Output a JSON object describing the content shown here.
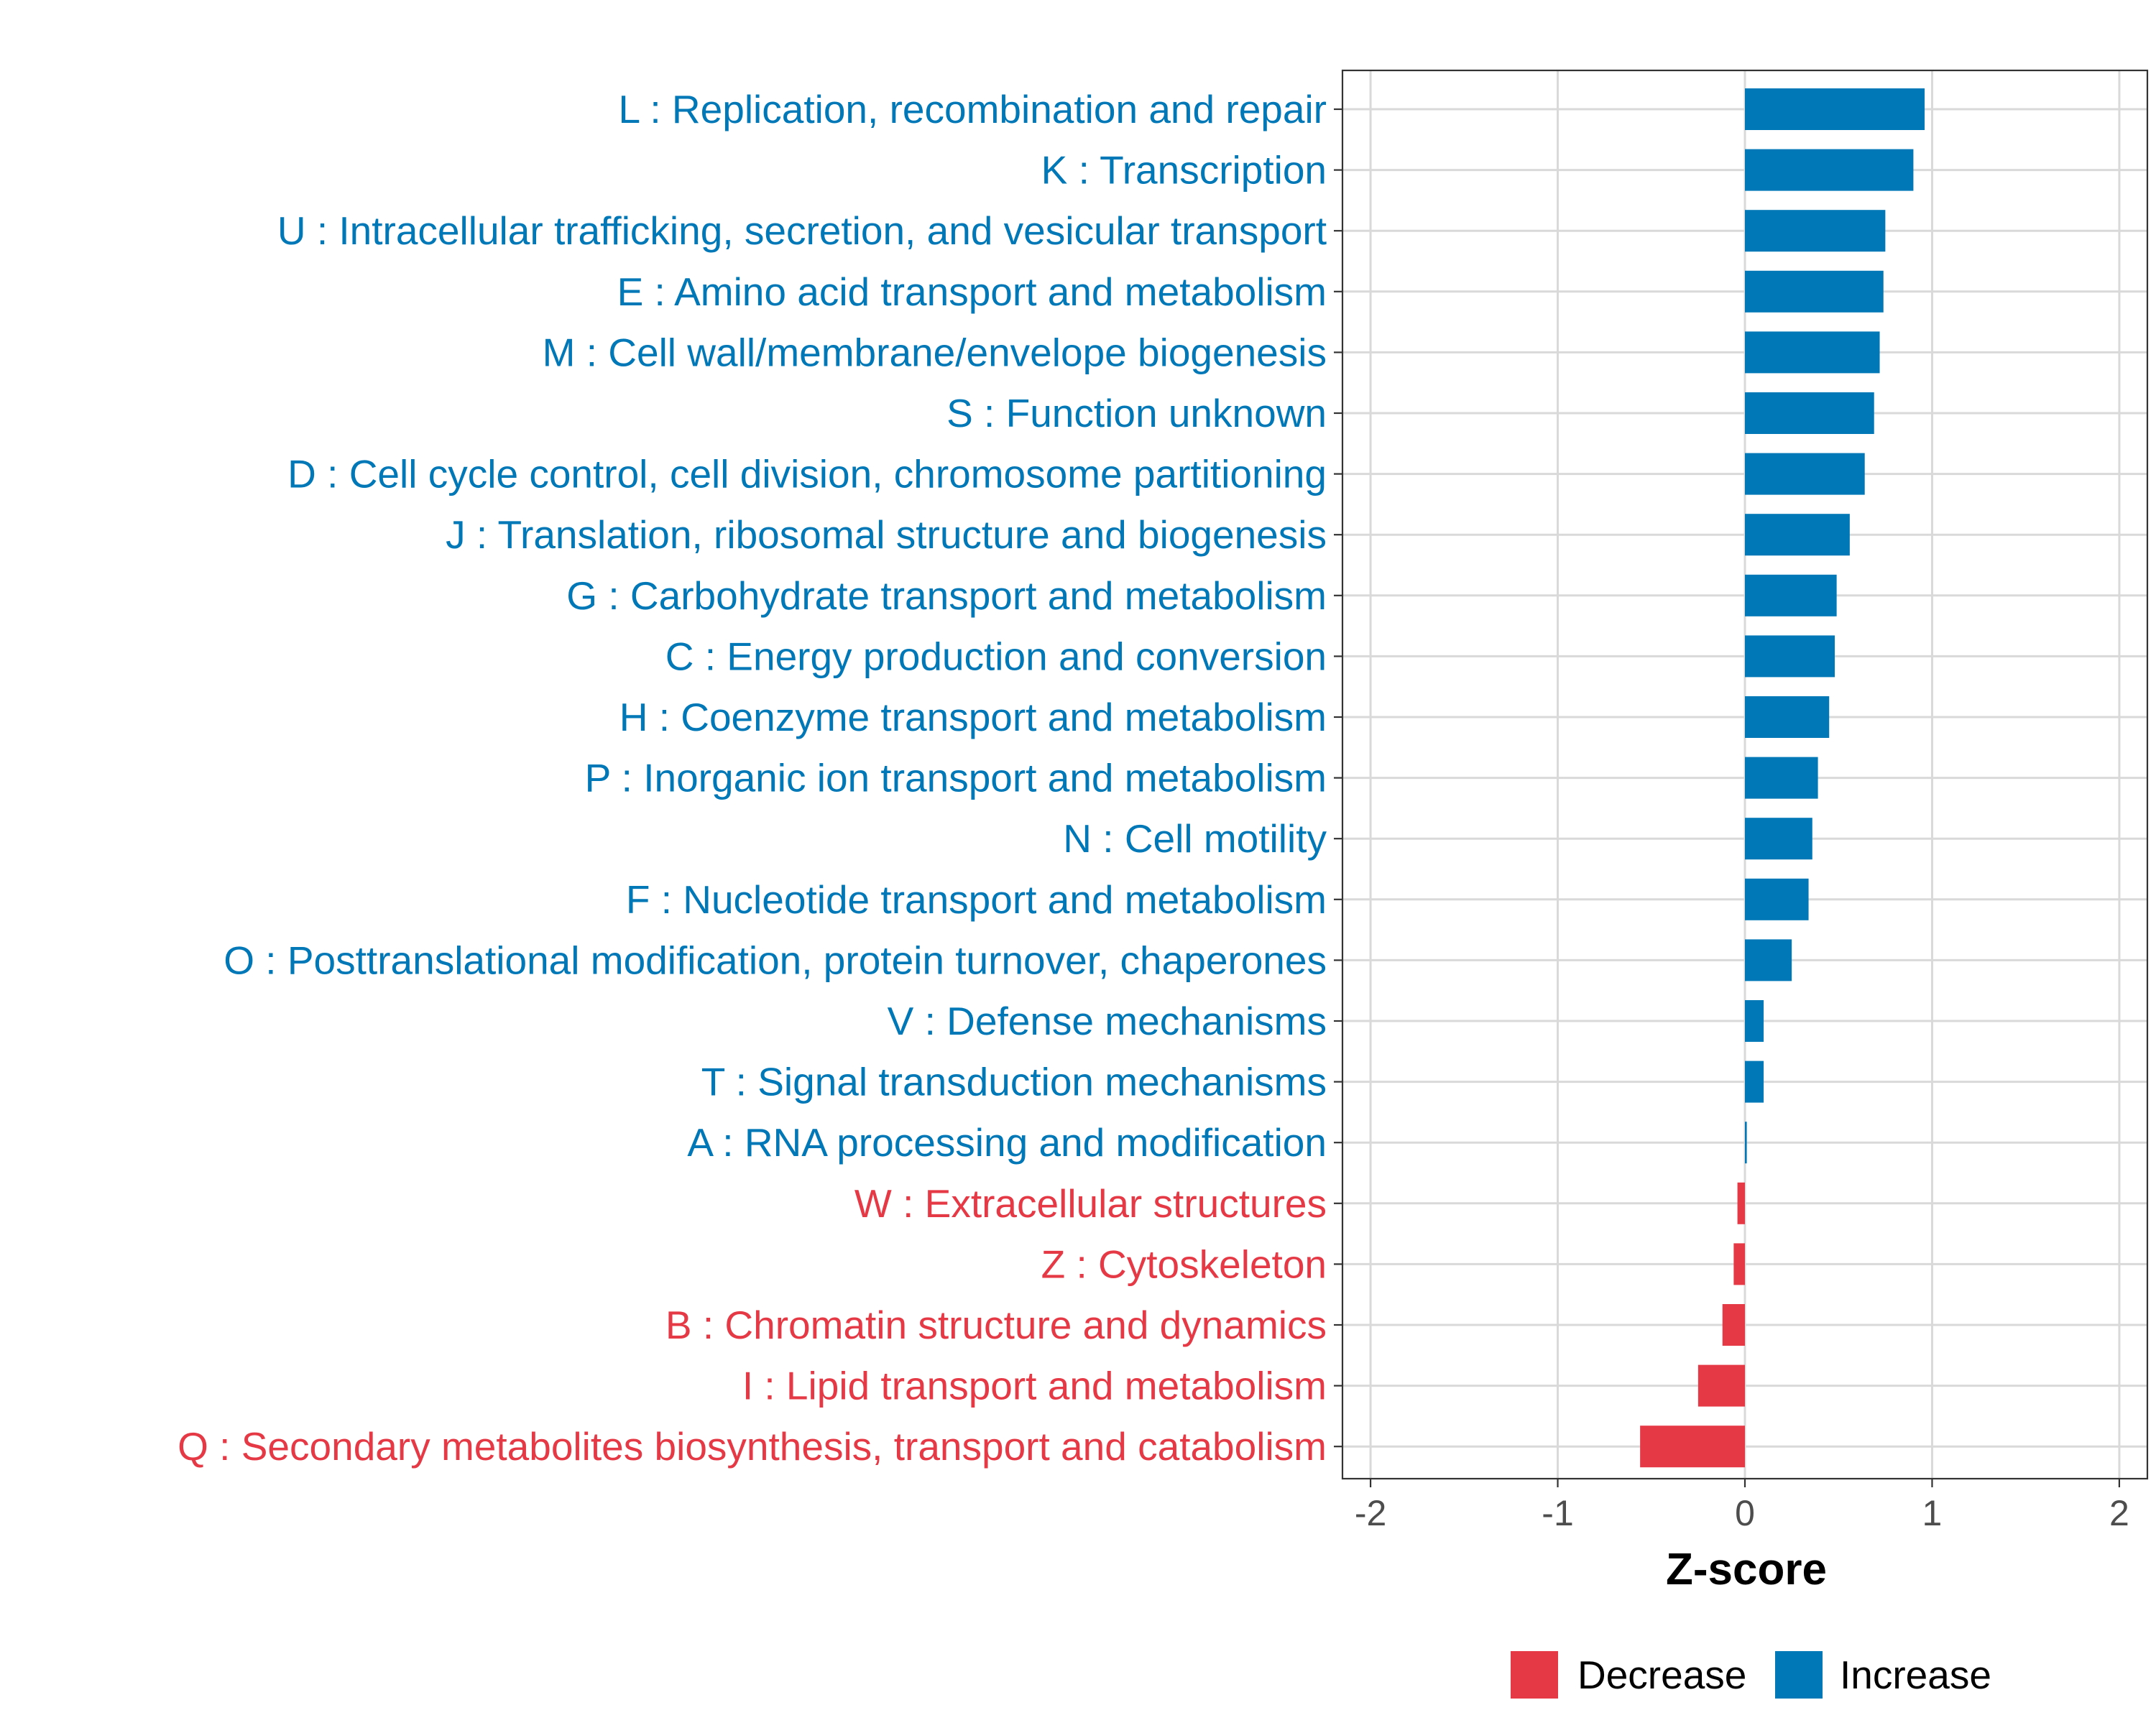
{
  "chart_data": {
    "type": "bar",
    "orientation": "horizontal",
    "title": "",
    "xlabel": "Z-score",
    "ylabel": "",
    "xlim": [
      -2.15,
      2.15
    ],
    "xticks": [
      -2,
      -1,
      0,
      1,
      2
    ],
    "xtick_labels": [
      "-2",
      "-1",
      "0",
      "1",
      "2"
    ],
    "grid": true,
    "legend_position": "bottom",
    "categories": [
      "L : Replication, recombination and repair",
      "K : Transcription",
      "U : Intracellular trafficking, secretion, and vesicular transport",
      "E : Amino acid transport and metabolism",
      "M : Cell wall/membrane/envelope biogenesis",
      "S : Function unknown",
      "D : Cell cycle control, cell division, chromosome partitioning",
      "J : Translation, ribosomal structure and biogenesis",
      "G : Carbohydrate transport and metabolism",
      "C : Energy production and conversion",
      "H : Coenzyme transport and metabolism",
      "P : Inorganic ion transport and metabolism",
      "N : Cell motility",
      "F : Nucleotide transport and metabolism",
      "O : Posttranslational modification, protein turnover, chaperones",
      "V : Defense mechanisms",
      "T : Signal transduction mechanisms",
      "A : RNA processing and modification",
      "W : Extracellular structures",
      "Z : Cytoskeleton",
      "B : Chromatin structure and dynamics",
      "I : Lipid transport and metabolism",
      "Q : Secondary metabolites biosynthesis, transport and catabolism"
    ],
    "values": [
      0.96,
      0.9,
      0.75,
      0.74,
      0.72,
      0.69,
      0.64,
      0.56,
      0.49,
      0.48,
      0.45,
      0.39,
      0.36,
      0.34,
      0.25,
      0.1,
      0.1,
      0.01,
      -0.04,
      -0.06,
      -0.12,
      -0.25,
      -0.56
    ],
    "groups": [
      "Increase",
      "Increase",
      "Increase",
      "Increase",
      "Increase",
      "Increase",
      "Increase",
      "Increase",
      "Increase",
      "Increase",
      "Increase",
      "Increase",
      "Increase",
      "Increase",
      "Increase",
      "Increase",
      "Increase",
      "Increase",
      "Decrease",
      "Decrease",
      "Decrease",
      "Decrease",
      "Decrease"
    ],
    "legend": [
      {
        "label": "Decrease",
        "color": "#E63946"
      },
      {
        "label": "Increase",
        "color": "#0077B6"
      }
    ]
  },
  "colors": {
    "increase": "#0077B6",
    "decrease": "#E63946",
    "grid": "#D9D9D9",
    "axis": "#333333",
    "tick_text": "#4D4D4D"
  }
}
